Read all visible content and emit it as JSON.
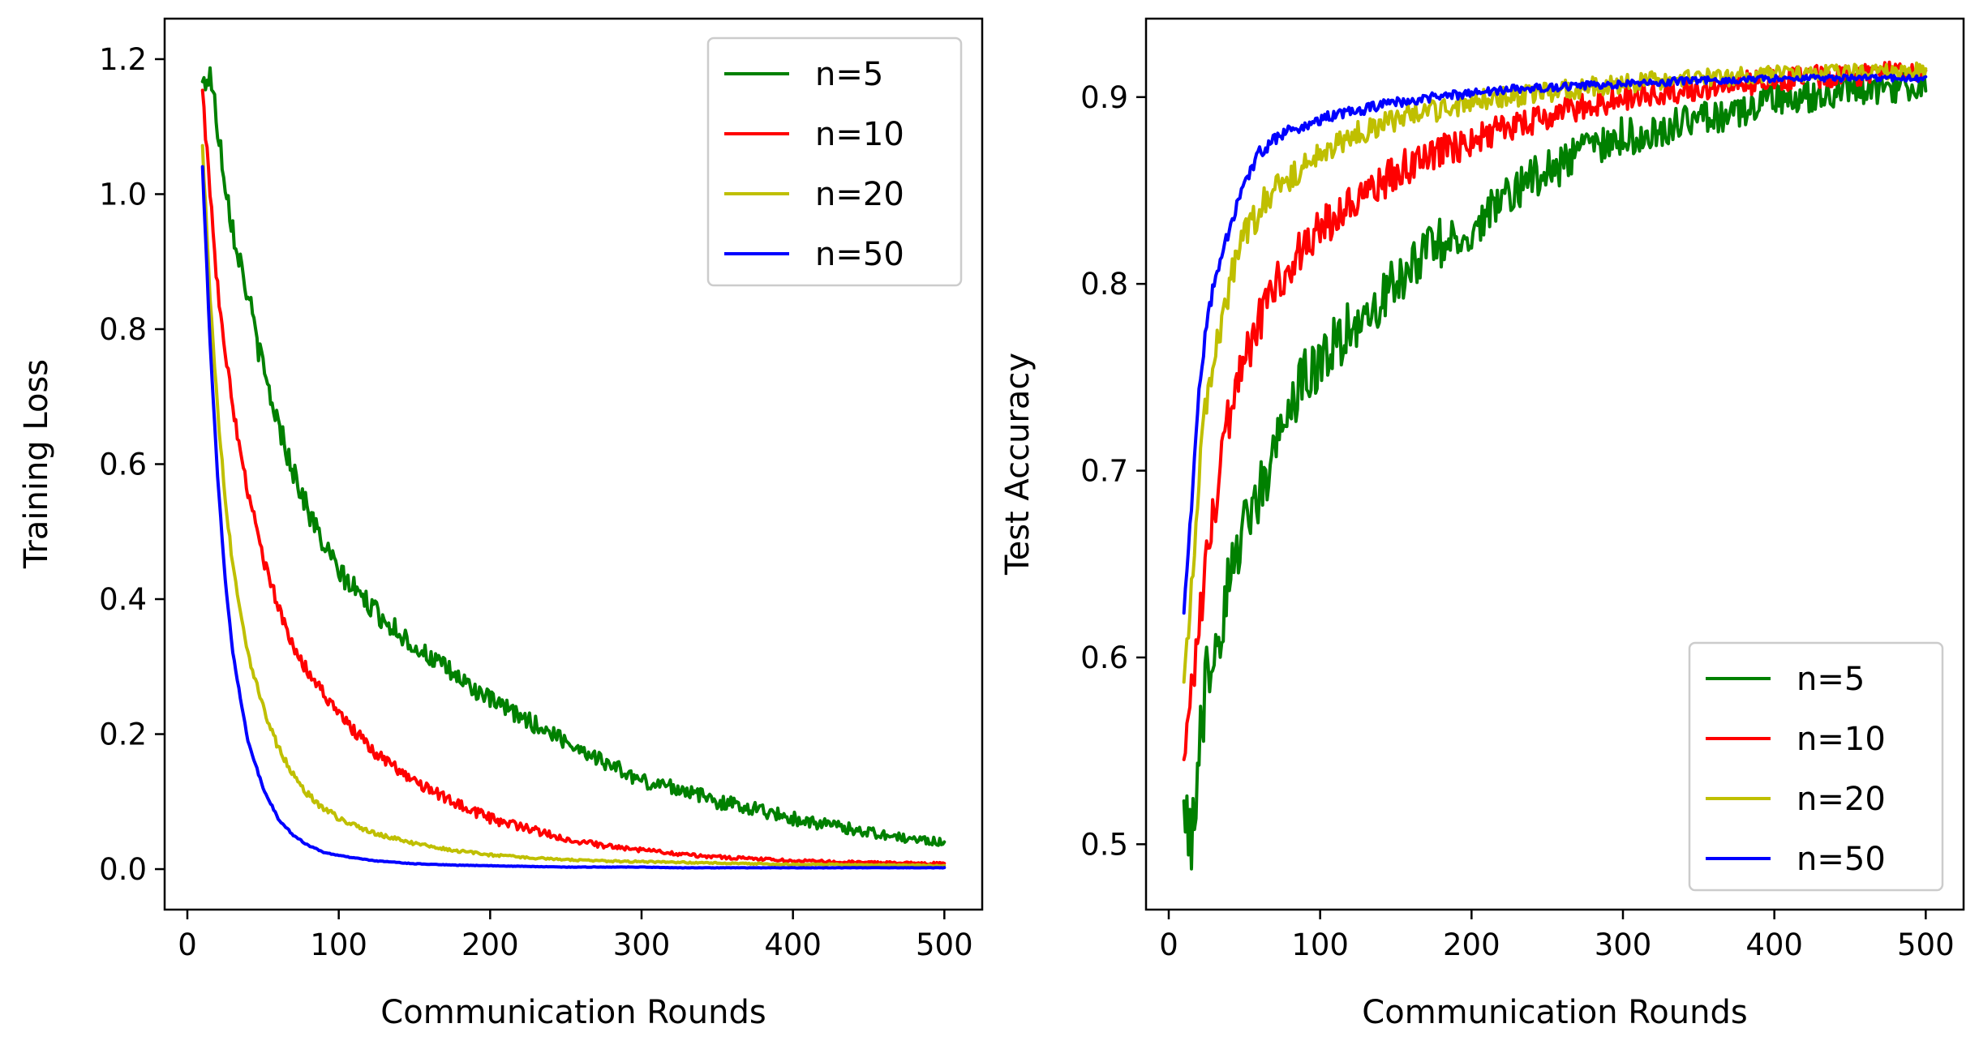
{
  "chart_data": [
    {
      "type": "line",
      "title": "",
      "xlabel": "Communication Rounds",
      "ylabel": "Training Loss",
      "xlim": [
        -15,
        525
      ],
      "ylim": [
        -0.06,
        1.26
      ],
      "xticks": [
        0,
        100,
        200,
        300,
        400,
        500
      ],
      "yticks": [
        0.0,
        0.2,
        0.4,
        0.6,
        0.8,
        1.0,
        1.2
      ],
      "x_tick_labels": [
        "0",
        "100",
        "200",
        "300",
        "400",
        "500"
      ],
      "y_tick_labels": [
        "0.0",
        "0.2",
        "0.4",
        "0.6",
        "0.8",
        "1.0",
        "1.2"
      ],
      "grid": false,
      "legend_position": "top-right",
      "x": [
        10,
        15,
        20,
        25,
        30,
        40,
        50,
        60,
        70,
        80,
        90,
        100,
        125,
        150,
        175,
        200,
        225,
        250,
        275,
        300,
        325,
        350,
        375,
        400,
        425,
        450,
        475,
        500
      ],
      "series": [
        {
          "name": "n=5",
          "color": "#008000",
          "noise": 0.022,
          "values": [
            1.16,
            1.18,
            1.1,
            1.02,
            0.95,
            0.85,
            0.74,
            0.66,
            0.59,
            0.53,
            0.48,
            0.44,
            0.38,
            0.33,
            0.29,
            0.25,
            0.22,
            0.19,
            0.16,
            0.13,
            0.12,
            0.1,
            0.09,
            0.075,
            0.065,
            0.055,
            0.045,
            0.04
          ]
        },
        {
          "name": "n=10",
          "color": "#ff0000",
          "noise": 0.012,
          "values": [
            1.15,
            1.0,
            0.86,
            0.77,
            0.68,
            0.56,
            0.46,
            0.39,
            0.33,
            0.29,
            0.26,
            0.23,
            0.17,
            0.13,
            0.1,
            0.075,
            0.06,
            0.045,
            0.035,
            0.028,
            0.022,
            0.018,
            0.015,
            0.013,
            0.011,
            0.01,
            0.009,
            0.008
          ]
        },
        {
          "name": "n=20",
          "color": "#bfbf00",
          "noise": 0.006,
          "values": [
            1.07,
            0.85,
            0.68,
            0.55,
            0.45,
            0.32,
            0.24,
            0.18,
            0.14,
            0.11,
            0.09,
            0.075,
            0.052,
            0.038,
            0.028,
            0.021,
            0.017,
            0.014,
            0.012,
            0.011,
            0.01,
            0.009,
            0.008,
            0.007,
            0.007,
            0.006,
            0.006,
            0.005
          ]
        },
        {
          "name": "n=50",
          "color": "#0000ff",
          "noise": 0.002,
          "values": [
            1.04,
            0.78,
            0.58,
            0.43,
            0.32,
            0.19,
            0.12,
            0.075,
            0.05,
            0.035,
            0.025,
            0.02,
            0.012,
            0.008,
            0.006,
            0.005,
            0.004,
            0.003,
            0.003,
            0.003,
            0.002,
            0.002,
            0.002,
            0.002,
            0.002,
            0.002,
            0.002,
            0.002
          ]
        }
      ]
    },
    {
      "type": "line",
      "title": "",
      "xlabel": "Communication Rounds",
      "ylabel": "Test Accuracy",
      "xlim": [
        -15,
        525
      ],
      "ylim": [
        0.465,
        0.942
      ],
      "xticks": [
        0,
        100,
        200,
        300,
        400,
        500
      ],
      "yticks": [
        0.5,
        0.6,
        0.7,
        0.8,
        0.9
      ],
      "x_tick_labels": [
        "0",
        "100",
        "200",
        "300",
        "400",
        "500"
      ],
      "y_tick_labels": [
        "0.5",
        "0.6",
        "0.7",
        "0.8",
        "0.9"
      ],
      "grid": false,
      "legend_position": "bottom-right",
      "x": [
        10,
        15,
        20,
        25,
        30,
        40,
        50,
        60,
        70,
        80,
        90,
        100,
        125,
        150,
        175,
        200,
        225,
        250,
        275,
        300,
        325,
        350,
        375,
        400,
        425,
        450,
        475,
        500
      ],
      "series": [
        {
          "name": "n=5",
          "color": "#008000",
          "noise": 0.02,
          "values": [
            0.53,
            0.5,
            0.55,
            0.59,
            0.6,
            0.64,
            0.67,
            0.69,
            0.71,
            0.73,
            0.75,
            0.76,
            0.78,
            0.8,
            0.82,
            0.83,
            0.85,
            0.86,
            0.87,
            0.88,
            0.88,
            0.89,
            0.89,
            0.9,
            0.9,
            0.905,
            0.905,
            0.905
          ]
        },
        {
          "name": "n=10",
          "color": "#ff0000",
          "noise": 0.014,
          "values": [
            0.55,
            0.58,
            0.62,
            0.65,
            0.68,
            0.73,
            0.76,
            0.78,
            0.8,
            0.81,
            0.82,
            0.83,
            0.845,
            0.86,
            0.87,
            0.875,
            0.885,
            0.89,
            0.895,
            0.9,
            0.903,
            0.905,
            0.907,
            0.909,
            0.911,
            0.912,
            0.913,
            0.914
          ]
        },
        {
          "name": "n=20",
          "color": "#bfbf00",
          "noise": 0.01,
          "values": [
            0.59,
            0.64,
            0.7,
            0.74,
            0.76,
            0.8,
            0.825,
            0.84,
            0.85,
            0.858,
            0.865,
            0.87,
            0.88,
            0.888,
            0.893,
            0.897,
            0.9,
            0.903,
            0.905,
            0.907,
            0.909,
            0.91,
            0.911,
            0.912,
            0.913,
            0.913,
            0.914,
            0.914
          ]
        },
        {
          "name": "n=50",
          "color": "#0000ff",
          "noise": 0.004,
          "values": [
            0.625,
            0.68,
            0.74,
            0.78,
            0.8,
            0.83,
            0.855,
            0.87,
            0.877,
            0.882,
            0.885,
            0.888,
            0.893,
            0.897,
            0.9,
            0.902,
            0.904,
            0.905,
            0.906,
            0.907,
            0.908,
            0.909,
            0.909,
            0.91,
            0.91,
            0.91,
            0.91,
            0.91
          ]
        }
      ]
    }
  ]
}
